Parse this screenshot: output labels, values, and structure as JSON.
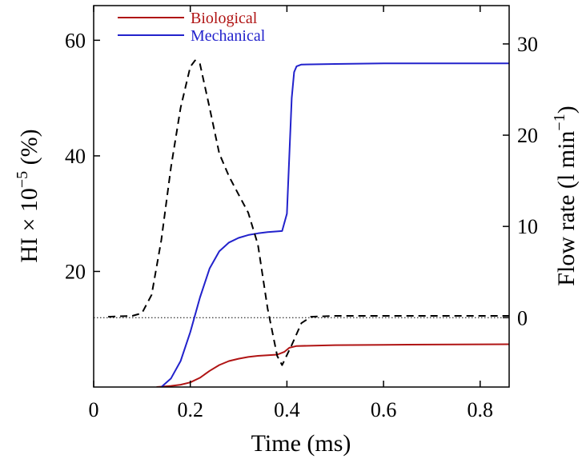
{
  "chart_data": {
    "type": "line",
    "xlabel": "Time (ms)",
    "ylabel_left": "HI × 10",
    "ylabel_left_exp": "−5",
    "ylabel_left_unit": " (%)",
    "ylabel_right": "Flow rate  (l min",
    "ylabel_right_exp": "−1",
    "ylabel_right_close": ")",
    "xlim": [
      0,
      0.86
    ],
    "ylim_left": [
      0,
      66
    ],
    "ylim_right": [
      -7.6,
      34.2
    ],
    "x_ticks": [
      0,
      0.2,
      0.4,
      0.6,
      0.8
    ],
    "x_tick_labels": [
      "0",
      "0.2",
      "0.4",
      "0.6",
      "0.8"
    ],
    "y_left_ticks": [
      20,
      40,
      60
    ],
    "y_left_tick_labels": [
      "20",
      "40",
      "60"
    ],
    "y_right_ticks": [
      0,
      10,
      20,
      30
    ],
    "y_right_tick_labels": [
      "0",
      "10",
      "20",
      "30"
    ],
    "legend_position": "top-left",
    "reference_line": {
      "axis": "right",
      "y": 0,
      "style": "dotted"
    },
    "series": [
      {
        "name": "Biological",
        "axis": "left",
        "color": "#b01414",
        "style": "solid",
        "x": [
          0.13,
          0.16,
          0.18,
          0.2,
          0.22,
          0.24,
          0.26,
          0.28,
          0.3,
          0.32,
          0.34,
          0.36,
          0.38,
          0.395,
          0.405,
          0.42,
          0.5,
          0.6,
          0.7,
          0.86
        ],
        "y": [
          0,
          0.2,
          0.4,
          0.8,
          1.6,
          2.8,
          3.8,
          4.5,
          4.9,
          5.2,
          5.4,
          5.5,
          5.6,
          6.1,
          6.8,
          7.1,
          7.25,
          7.3,
          7.35,
          7.4
        ]
      },
      {
        "name": "Mechanical",
        "axis": "left",
        "color": "#2222cc",
        "style": "solid",
        "x": [
          0.14,
          0.16,
          0.18,
          0.2,
          0.22,
          0.24,
          0.26,
          0.28,
          0.3,
          0.32,
          0.34,
          0.36,
          0.39,
          0.4,
          0.405,
          0.41,
          0.415,
          0.42,
          0.43,
          0.5,
          0.6,
          0.7,
          0.86
        ],
        "y": [
          0,
          1.5,
          4.5,
          9.5,
          15.5,
          20.5,
          23.5,
          25.0,
          25.8,
          26.3,
          26.6,
          26.8,
          27.0,
          30.0,
          40.0,
          50.0,
          54.5,
          55.5,
          55.8,
          55.9,
          56.0,
          56.0,
          56.0
        ]
      },
      {
        "name": "Flow rate",
        "axis": "right",
        "color": "#000000",
        "style": "dashed",
        "x": [
          0.03,
          0.08,
          0.1,
          0.12,
          0.14,
          0.16,
          0.18,
          0.2,
          0.21,
          0.22,
          0.24,
          0.26,
          0.28,
          0.3,
          0.32,
          0.34,
          0.36,
          0.38,
          0.39,
          0.41,
          0.43,
          0.45,
          0.5,
          0.6,
          0.7,
          0.86
        ],
        "y": [
          0.1,
          0.2,
          0.5,
          2.5,
          8.5,
          16.5,
          23.0,
          27.5,
          28.2,
          27.8,
          23.0,
          18.0,
          15.5,
          13.5,
          11.5,
          8.0,
          1.0,
          -4.2,
          -5.2,
          -3.0,
          -0.6,
          0.1,
          0.2,
          0.2,
          0.2,
          0.2
        ]
      }
    ]
  }
}
